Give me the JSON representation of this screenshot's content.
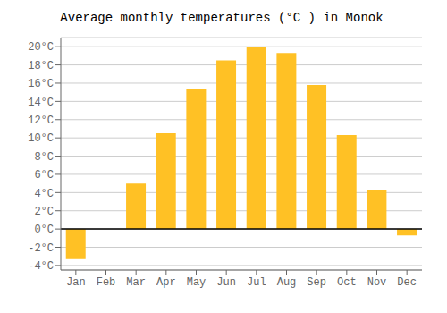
{
  "chart_data": {
    "type": "bar",
    "title": "Average monthly temperatures (°C ) in Monok",
    "categories": [
      "Jan",
      "Feb",
      "Mar",
      "Apr",
      "May",
      "Jun",
      "Jul",
      "Aug",
      "Sep",
      "Oct",
      "Nov",
      "Dec"
    ],
    "values": [
      -3.3,
      0,
      5.0,
      10.5,
      15.3,
      18.5,
      20.0,
      19.3,
      15.8,
      10.3,
      4.3,
      -0.7
    ],
    "color": "#FFC125",
    "ylim": [
      -4.5,
      21
    ],
    "yticks": [
      {
        "value": -4,
        "label": "-4°C"
      },
      {
        "value": -2,
        "label": "-2°C"
      },
      {
        "value": 0,
        "label": "0°C"
      },
      {
        "value": 2,
        "label": "2°C"
      },
      {
        "value": 4,
        "label": "4°C"
      },
      {
        "value": 6,
        "label": "6°C"
      },
      {
        "value": 8,
        "label": "8°C"
      },
      {
        "value": 10,
        "label": "10°C"
      },
      {
        "value": 12,
        "label": "12°C"
      },
      {
        "value": 14,
        "label": "14°C"
      },
      {
        "value": 16,
        "label": "16°C"
      },
      {
        "value": 18,
        "label": "18°C"
      },
      {
        "value": 20,
        "label": "20°C"
      }
    ],
    "grid": true
  }
}
